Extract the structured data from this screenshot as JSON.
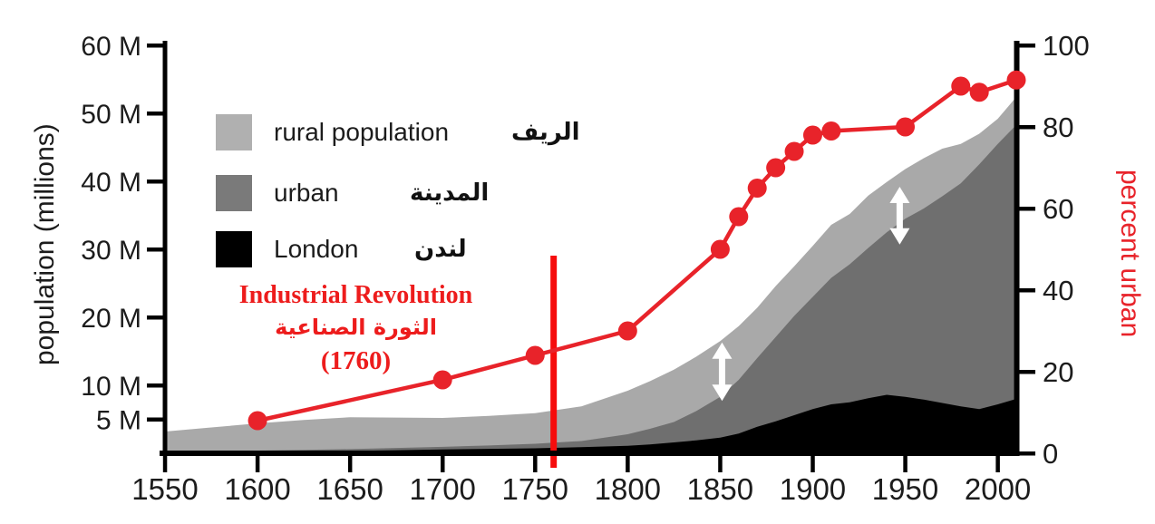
{
  "figure": {
    "left_axis_title": "population (millions)",
    "right_axis_title": "percent urban",
    "annotation": {
      "line1": "Industrial Revolution",
      "line2": "الثورة الصناعية",
      "line3": "(1760)"
    },
    "legend": [
      {
        "label_en": "rural population",
        "label_ar": "الريف",
        "color": "#b0b0b0"
      },
      {
        "label_en": "urban",
        "label_ar": "المدينة",
        "color": "#7a7a7a"
      },
      {
        "label_en": "London",
        "label_ar": "لندن",
        "color": "#000000"
      }
    ],
    "colors": {
      "rural_area": "#a9a9a9",
      "urban_area": "#6f6f6f",
      "london_area": "#000000",
      "percent_urban_line": "#e8232a",
      "event_line": "#f60c0c",
      "annotation_text": "#ed1c1c",
      "axis": "#000000",
      "tick_text": "#1c1c1c"
    }
  },
  "chart_data": {
    "type": "area",
    "title": "",
    "xlabel": "",
    "x_axis": {
      "range": [
        1550,
        2010
      ],
      "ticks": [
        1550,
        1600,
        1650,
        1700,
        1750,
        1800,
        1850,
        1900,
        1950,
        2000
      ]
    },
    "y_left_axis": {
      "label": "population (millions)",
      "range_millions": [
        0,
        60
      ],
      "ticks": [
        {
          "value": 5,
          "label": "5 M"
        },
        {
          "value": 10,
          "label": "10 M"
        },
        {
          "value": 20,
          "label": "20 M"
        },
        {
          "value": 30,
          "label": "30 M"
        },
        {
          "value": 40,
          "label": "40 M"
        },
        {
          "value": 50,
          "label": "50 M"
        },
        {
          "value": 60,
          "label": "60 M"
        }
      ]
    },
    "y_right_axis": {
      "label": "percent urban",
      "range_percent": [
        0,
        100
      ],
      "ticks": [
        0,
        20,
        40,
        60,
        80,
        100
      ]
    },
    "areas": {
      "note": "layered bands, drawn back to front; visible light-gray band thickness = rural population",
      "years": [
        1550,
        1575,
        1600,
        1625,
        1650,
        1675,
        1700,
        1725,
        1750,
        1775,
        1800,
        1812,
        1825,
        1837,
        1850,
        1860,
        1870,
        1880,
        1890,
        1900,
        1910,
        1920,
        1930,
        1940,
        1950,
        1960,
        1970,
        1980,
        1990,
        2000,
        2010
      ],
      "series": [
        {
          "name": "total-population-top-of-rural-band",
          "legend": "rural population",
          "color": "#a9a9a9",
          "values_millions": [
            3.2,
            3.8,
            4.4,
            4.9,
            5.3,
            5.25,
            5.2,
            5.5,
            5.9,
            6.9,
            9.2,
            10.6,
            12.3,
            14.2,
            16.5,
            18.7,
            21.4,
            24.6,
            27.5,
            30.5,
            33.6,
            35.2,
            37.9,
            39.9,
            41.8,
            43.4,
            44.8,
            45.5,
            47.0,
            49.2,
            52.4
          ]
        },
        {
          "name": "urban-population",
          "legend": "urban",
          "color": "#6f6f6f",
          "values_millions": [
            0.25,
            0.32,
            0.4,
            0.5,
            0.62,
            0.78,
            0.95,
            1.15,
            1.4,
            1.8,
            2.8,
            3.6,
            4.6,
            6.2,
            8.3,
            10.8,
            14.0,
            17.1,
            20.2,
            23.0,
            25.8,
            27.8,
            30.2,
            32.5,
            34.5,
            36.0,
            37.8,
            39.7,
            42.5,
            45.5,
            48.3
          ]
        },
        {
          "name": "london-population",
          "legend": "London",
          "color": "#000000",
          "values_millions": [
            0.08,
            0.14,
            0.2,
            0.28,
            0.35,
            0.45,
            0.57,
            0.65,
            0.74,
            0.9,
            1.1,
            1.3,
            1.6,
            1.9,
            2.3,
            2.9,
            3.9,
            4.7,
            5.6,
            6.5,
            7.2,
            7.5,
            8.1,
            8.6,
            8.3,
            7.9,
            7.4,
            6.9,
            6.5,
            7.2,
            8.0
          ]
        }
      ]
    },
    "percent_urban_line": {
      "color": "#e8232a",
      "points": [
        [
          1600,
          8
        ],
        [
          1700,
          18
        ],
        [
          1750,
          24
        ],
        [
          1800,
          30
        ],
        [
          1850,
          50
        ],
        [
          1860,
          58
        ],
        [
          1870,
          65
        ],
        [
          1880,
          70
        ],
        [
          1890,
          74
        ],
        [
          1900,
          78
        ],
        [
          1910,
          79
        ],
        [
          1950,
          80
        ],
        [
          1980,
          90
        ],
        [
          1990,
          88.5
        ],
        [
          2010,
          91.5
        ]
      ]
    },
    "event_line": {
      "year": 1760,
      "color": "#f60c0c",
      "label": "Industrial Revolution (1760)"
    },
    "rural_band_arrows": [
      {
        "year": 1851,
        "from_millions": 7.7,
        "to_millions": 16.3
      },
      {
        "year": 1947,
        "from_millions": 30.7,
        "to_millions": 39.2
      }
    ]
  }
}
